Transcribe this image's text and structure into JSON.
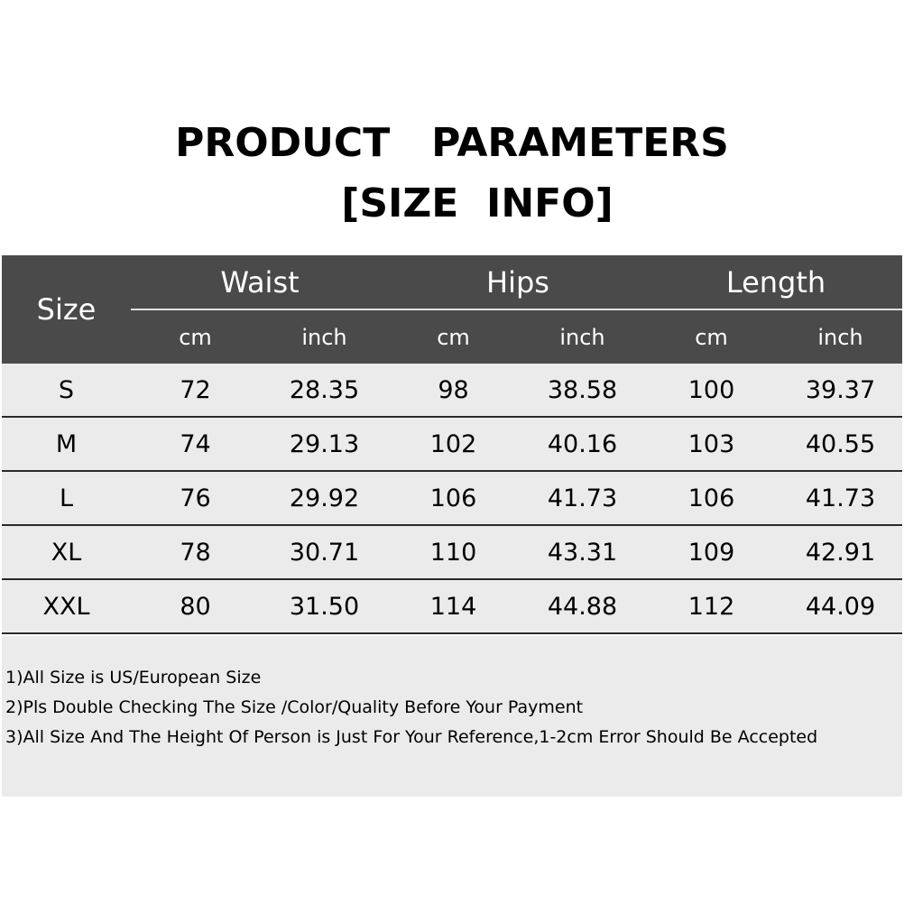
{
  "title": {
    "line1": "PRODUCT   PARAMETERS",
    "line2": "[SIZE  INFO]"
  },
  "table": {
    "size_header": "Size",
    "groups": [
      "Waist",
      "Hips",
      "Length"
    ],
    "units": [
      "cm",
      "inch",
      "cm",
      "inch",
      "cm",
      "inch"
    ],
    "rows": [
      [
        "S",
        "72",
        "28.35",
        "98",
        "38.58",
        "100",
        "39.37"
      ],
      [
        "M",
        "74",
        "29.13",
        "102",
        "40.16",
        "103",
        "40.55"
      ],
      [
        "L",
        "76",
        "29.92",
        "106",
        "41.73",
        "106",
        "41.73"
      ],
      [
        "XL",
        "78",
        "30.71",
        "110",
        "43.31",
        "109",
        "42.91"
      ],
      [
        "XXL",
        "80",
        "31.50",
        "114",
        "44.88",
        "112",
        "44.09"
      ]
    ]
  },
  "notes": [
    "1)All Size is US/European Size",
    "2)Pls Double Checking The Size /Color/Quality Before Your Payment",
    "3)All Size And The Height Of Person is Just For Your Reference,1-2cm Error Should Be Accepted"
  ],
  "colors": {
    "header_bg": "#4a4a4a",
    "row_bg": "#ebebeb"
  }
}
